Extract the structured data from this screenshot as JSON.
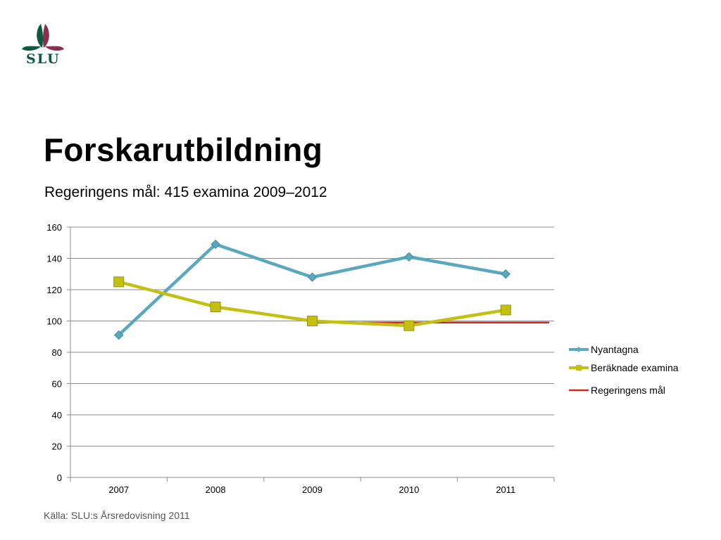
{
  "logo": {
    "text": "SLU"
  },
  "title": "Forskarutbildning",
  "subtitle": "Regeringens mål: 415 examina 2009–2012",
  "source": "Källa: SLU:s Årsredovisning 2011",
  "chart_data": {
    "type": "line",
    "title": "",
    "xlabel": "",
    "ylabel": "",
    "categories": [
      "2007",
      "2008",
      "2009",
      "2010",
      "2011"
    ],
    "ylim": [
      0,
      160
    ],
    "yticks": [
      0,
      20,
      40,
      60,
      80,
      100,
      120,
      140,
      160
    ],
    "grid": true,
    "legend_position": "right",
    "series": [
      {
        "name": "Nyantagna",
        "color": "#5aa7c0",
        "marker": "diamond",
        "values": [
          91,
          149,
          128,
          141,
          130
        ]
      },
      {
        "name": "Beräknade examina",
        "color": "#c4c012",
        "marker": "square",
        "values": [
          125,
          109,
          100,
          97,
          107
        ]
      },
      {
        "name": "Regeringens mål",
        "color": "#d0261c",
        "marker": "none",
        "x_start": "2009",
        "x_end": "2011",
        "values": [
          null,
          null,
          99,
          99,
          99
        ]
      }
    ]
  }
}
